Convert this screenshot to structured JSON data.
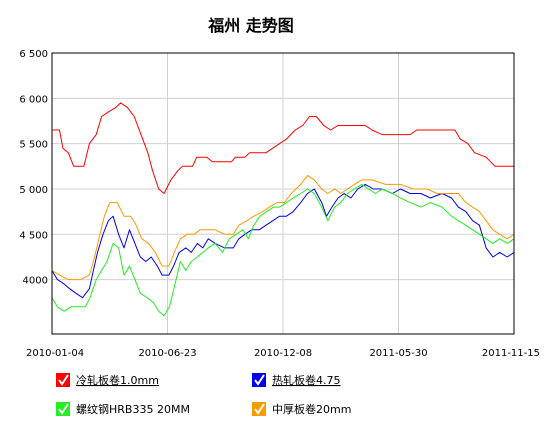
{
  "chart_data": {
    "type": "line",
    "title": "福州 走势图",
    "xlabel": "",
    "ylabel": "",
    "ylim": [
      3400,
      6500
    ],
    "yticks": [
      4000,
      4500,
      5000,
      5500,
      6000,
      6500
    ],
    "ytick_labels": [
      "4000",
      "4 500",
      "5 000",
      "5 500",
      "6 000",
      "6 500"
    ],
    "x_range": [
      "2010-01-04",
      "2011-11-15"
    ],
    "xtick_labels": [
      "2010-01-04",
      "2010-06-23",
      "2010-12-08",
      "2011-05-30",
      "2011-11-15"
    ],
    "grid": true,
    "legend_position": "bottom",
    "series": [
      {
        "name": "冷轧板卷1.0mm",
        "color": "#ff0000",
        "link": true,
        "points": [
          [
            "2010-01-04",
            5650
          ],
          [
            "2010-01-15",
            5650
          ],
          [
            "2010-01-20",
            5450
          ],
          [
            "2010-01-28",
            5400
          ],
          [
            "2010-02-05",
            5250
          ],
          [
            "2010-02-20",
            5250
          ],
          [
            "2010-02-28",
            5500
          ],
          [
            "2010-03-10",
            5600
          ],
          [
            "2010-03-18",
            5800
          ],
          [
            "2010-03-28",
            5850
          ],
          [
            "2010-04-08",
            5900
          ],
          [
            "2010-04-15",
            5950
          ],
          [
            "2010-04-25",
            5900
          ],
          [
            "2010-05-05",
            5800
          ],
          [
            "2010-05-15",
            5600
          ],
          [
            "2010-05-25",
            5400
          ],
          [
            "2010-06-01",
            5200
          ],
          [
            "2010-06-10",
            5000
          ],
          [
            "2010-06-18",
            4950
          ],
          [
            "2010-06-28",
            5100
          ],
          [
            "2010-07-08",
            5200
          ],
          [
            "2010-07-15",
            5250
          ],
          [
            "2010-07-30",
            5250
          ],
          [
            "2010-08-05",
            5350
          ],
          [
            "2010-08-20",
            5350
          ],
          [
            "2010-08-28",
            5300
          ],
          [
            "2010-09-25",
            5300
          ],
          [
            "2010-10-01",
            5350
          ],
          [
            "2010-10-15",
            5350
          ],
          [
            "2010-10-22",
            5400
          ],
          [
            "2010-11-15",
            5400
          ],
          [
            "2010-11-25",
            5450
          ],
          [
            "2010-12-05",
            5500
          ],
          [
            "2010-12-15",
            5550
          ],
          [
            "2010-12-28",
            5650
          ],
          [
            "2011-01-08",
            5700
          ],
          [
            "2011-01-18",
            5800
          ],
          [
            "2011-01-28",
            5800
          ],
          [
            "2011-02-08",
            5700
          ],
          [
            "2011-02-18",
            5650
          ],
          [
            "2011-03-01",
            5700
          ],
          [
            "2011-03-10",
            5700
          ],
          [
            "2011-04-10",
            5700
          ],
          [
            "2011-04-20",
            5650
          ],
          [
            "2011-05-05",
            5600
          ],
          [
            "2011-06-15",
            5600
          ],
          [
            "2011-06-25",
            5650
          ],
          [
            "2011-08-20",
            5650
          ],
          [
            "2011-08-28",
            5550
          ],
          [
            "2011-09-08",
            5500
          ],
          [
            "2011-09-18",
            5400
          ],
          [
            "2011-10-05",
            5350
          ],
          [
            "2011-10-18",
            5250
          ],
          [
            "2011-11-15",
            5250
          ]
        ]
      },
      {
        "name": "热轧板卷4.75",
        "color": "#0000ee",
        "link": true,
        "points": [
          [
            "2010-01-04",
            4100
          ],
          [
            "2010-01-12",
            4000
          ],
          [
            "2010-01-22",
            3950
          ],
          [
            "2010-01-30",
            3900
          ],
          [
            "2010-02-08",
            3850
          ],
          [
            "2010-02-18",
            3800
          ],
          [
            "2010-02-28",
            3900
          ],
          [
            "2010-03-06",
            4100
          ],
          [
            "2010-03-12",
            4300
          ],
          [
            "2010-03-20",
            4500
          ],
          [
            "2010-03-28",
            4650
          ],
          [
            "2010-04-04",
            4700
          ],
          [
            "2010-04-12",
            4500
          ],
          [
            "2010-04-20",
            4350
          ],
          [
            "2010-04-28",
            4550
          ],
          [
            "2010-05-06",
            4400
          ],
          [
            "2010-05-14",
            4250
          ],
          [
            "2010-05-22",
            4200
          ],
          [
            "2010-05-30",
            4250
          ],
          [
            "2010-06-08",
            4150
          ],
          [
            "2010-06-15",
            4050
          ],
          [
            "2010-06-25",
            4050
          ],
          [
            "2010-07-02",
            4150
          ],
          [
            "2010-07-10",
            4300
          ],
          [
            "2010-07-20",
            4350
          ],
          [
            "2010-07-28",
            4300
          ],
          [
            "2010-08-06",
            4400
          ],
          [
            "2010-08-14",
            4350
          ],
          [
            "2010-08-22",
            4450
          ],
          [
            "2010-09-01",
            4400
          ],
          [
            "2010-09-15",
            4350
          ],
          [
            "2010-09-28",
            4350
          ],
          [
            "2010-10-06",
            4450
          ],
          [
            "2010-10-15",
            4500
          ],
          [
            "2010-10-25",
            4550
          ],
          [
            "2010-11-05",
            4550
          ],
          [
            "2010-11-15",
            4600
          ],
          [
            "2010-11-25",
            4650
          ],
          [
            "2010-12-05",
            4700
          ],
          [
            "2010-12-15",
            4700
          ],
          [
            "2010-12-25",
            4750
          ],
          [
            "2011-01-05",
            4850
          ],
          [
            "2011-01-15",
            4950
          ],
          [
            "2011-01-25",
            5000
          ],
          [
            "2011-02-05",
            4850
          ],
          [
            "2011-02-12",
            4700
          ],
          [
            "2011-02-20",
            4800
          ],
          [
            "2011-03-01",
            4900
          ],
          [
            "2011-03-10",
            4950
          ],
          [
            "2011-03-20",
            4900
          ],
          [
            "2011-03-30",
            5000
          ],
          [
            "2011-04-10",
            5050
          ],
          [
            "2011-04-22",
            5000
          ],
          [
            "2011-05-05",
            5000
          ],
          [
            "2011-05-20",
            4950
          ],
          [
            "2011-06-01",
            5000
          ],
          [
            "2011-06-15",
            4950
          ],
          [
            "2011-07-01",
            4950
          ],
          [
            "2011-07-15",
            4900
          ],
          [
            "2011-08-01",
            4950
          ],
          [
            "2011-08-15",
            4900
          ],
          [
            "2011-08-25",
            4800
          ],
          [
            "2011-09-05",
            4750
          ],
          [
            "2011-09-15",
            4650
          ],
          [
            "2011-09-25",
            4600
          ],
          [
            "2011-10-05",
            4350
          ],
          [
            "2011-10-15",
            4250
          ],
          [
            "2011-10-25",
            4300
          ],
          [
            "2011-11-05",
            4250
          ],
          [
            "2011-11-15",
            4300
          ]
        ]
      },
      {
        "name": "螺纹钢HRB335 20MM",
        "color": "#22ee22",
        "link": false,
        "points": [
          [
            "2010-01-04",
            3800
          ],
          [
            "2010-01-12",
            3700
          ],
          [
            "2010-01-22",
            3650
          ],
          [
            "2010-02-01",
            3700
          ],
          [
            "2010-02-12",
            3700
          ],
          [
            "2010-02-22",
            3700
          ],
          [
            "2010-03-01",
            3800
          ],
          [
            "2010-03-10",
            4000
          ],
          [
            "2010-03-18",
            4100
          ],
          [
            "2010-03-26",
            4200
          ],
          [
            "2010-04-04",
            4400
          ],
          [
            "2010-04-12",
            4350
          ],
          [
            "2010-04-20",
            4050
          ],
          [
            "2010-04-28",
            4150
          ],
          [
            "2010-05-06",
            4000
          ],
          [
            "2010-05-14",
            3850
          ],
          [
            "2010-05-24",
            3800
          ],
          [
            "2010-06-02",
            3750
          ],
          [
            "2010-06-10",
            3650
          ],
          [
            "2010-06-18",
            3600
          ],
          [
            "2010-06-26",
            3700
          ],
          [
            "2010-07-04",
            3950
          ],
          [
            "2010-07-12",
            4200
          ],
          [
            "2010-07-20",
            4100
          ],
          [
            "2010-07-28",
            4200
          ],
          [
            "2010-08-06",
            4250
          ],
          [
            "2010-08-14",
            4300
          ],
          [
            "2010-08-22",
            4350
          ],
          [
            "2010-09-01",
            4400
          ],
          [
            "2010-09-12",
            4300
          ],
          [
            "2010-09-22",
            4450
          ],
          [
            "2010-10-02",
            4500
          ],
          [
            "2010-10-12",
            4550
          ],
          [
            "2010-10-20",
            4450
          ],
          [
            "2010-10-28",
            4600
          ],
          [
            "2010-11-06",
            4700
          ],
          [
            "2010-11-16",
            4750
          ],
          [
            "2010-11-26",
            4800
          ],
          [
            "2010-12-05",
            4800
          ],
          [
            "2010-12-15",
            4850
          ],
          [
            "2010-12-25",
            4900
          ],
          [
            "2011-01-05",
            4950
          ],
          [
            "2011-01-15",
            5000
          ],
          [
            "2011-01-25",
            4950
          ],
          [
            "2011-02-05",
            4800
          ],
          [
            "2011-02-14",
            4650
          ],
          [
            "2011-02-24",
            4800
          ],
          [
            "2011-03-05",
            4850
          ],
          [
            "2011-03-15",
            4950
          ],
          [
            "2011-03-25",
            5000
          ],
          [
            "2011-04-05",
            5050
          ],
          [
            "2011-04-15",
            5000
          ],
          [
            "2011-04-25",
            4950
          ],
          [
            "2011-05-05",
            5000
          ],
          [
            "2011-05-20",
            4950
          ],
          [
            "2011-06-01",
            4900
          ],
          [
            "2011-06-15",
            4850
          ],
          [
            "2011-07-01",
            4800
          ],
          [
            "2011-07-15",
            4850
          ],
          [
            "2011-08-01",
            4800
          ],
          [
            "2011-08-15",
            4700
          ],
          [
            "2011-08-25",
            4650
          ],
          [
            "2011-09-05",
            4600
          ],
          [
            "2011-09-15",
            4550
          ],
          [
            "2011-09-25",
            4500
          ],
          [
            "2011-10-05",
            4450
          ],
          [
            "2011-10-15",
            4400
          ],
          [
            "2011-10-25",
            4450
          ],
          [
            "2011-11-05",
            4400
          ],
          [
            "2011-11-15",
            4450
          ]
        ]
      },
      {
        "name": "中厚板卷20mm",
        "color": "#ff9900",
        "link": false,
        "points": [
          [
            "2010-01-04",
            4100
          ],
          [
            "2010-01-15",
            4050
          ],
          [
            "2010-01-28",
            4000
          ],
          [
            "2010-02-15",
            4000
          ],
          [
            "2010-02-28",
            4050
          ],
          [
            "2010-03-06",
            4200
          ],
          [
            "2010-03-14",
            4450
          ],
          [
            "2010-03-22",
            4700
          ],
          [
            "2010-03-30",
            4850
          ],
          [
            "2010-04-10",
            4850
          ],
          [
            "2010-04-20",
            4700
          ],
          [
            "2010-04-30",
            4700
          ],
          [
            "2010-05-08",
            4600
          ],
          [
            "2010-05-16",
            4450
          ],
          [
            "2010-05-26",
            4400
          ],
          [
            "2010-06-05",
            4300
          ],
          [
            "2010-06-15",
            4150
          ],
          [
            "2010-06-25",
            4150
          ],
          [
            "2010-07-03",
            4300
          ],
          [
            "2010-07-12",
            4450
          ],
          [
            "2010-07-22",
            4500
          ],
          [
            "2010-08-01",
            4500
          ],
          [
            "2010-08-10",
            4550
          ],
          [
            "2010-08-20",
            4550
          ],
          [
            "2010-09-01",
            4550
          ],
          [
            "2010-09-15",
            4500
          ],
          [
            "2010-09-28",
            4500
          ],
          [
            "2010-10-06",
            4600
          ],
          [
            "2010-10-18",
            4650
          ],
          [
            "2010-10-28",
            4700
          ],
          [
            "2010-11-10",
            4750
          ],
          [
            "2010-11-20",
            4800
          ],
          [
            "2010-12-01",
            4850
          ],
          [
            "2010-12-12",
            4850
          ],
          [
            "2010-12-22",
            4950
          ],
          [
            "2011-01-05",
            5050
          ],
          [
            "2011-01-15",
            5150
          ],
          [
            "2011-01-25",
            5100
          ],
          [
            "2011-02-05",
            5000
          ],
          [
            "2011-02-14",
            4950
          ],
          [
            "2011-02-24",
            5000
          ],
          [
            "2011-03-05",
            4950
          ],
          [
            "2011-03-15",
            5000
          ],
          [
            "2011-03-25",
            5050
          ],
          [
            "2011-04-05",
            5100
          ],
          [
            "2011-04-20",
            5100
          ],
          [
            "2011-05-10",
            5050
          ],
          [
            "2011-06-01",
            5050
          ],
          [
            "2011-06-20",
            5000
          ],
          [
            "2011-07-10",
            5000
          ],
          [
            "2011-07-25",
            4950
          ],
          [
            "2011-08-10",
            4950
          ],
          [
            "2011-08-25",
            4950
          ],
          [
            "2011-09-05",
            4850
          ],
          [
            "2011-09-15",
            4800
          ],
          [
            "2011-09-25",
            4750
          ],
          [
            "2011-10-05",
            4650
          ],
          [
            "2011-10-15",
            4550
          ],
          [
            "2011-10-25",
            4500
          ],
          [
            "2011-11-05",
            4450
          ],
          [
            "2011-11-15",
            4500
          ]
        ]
      }
    ]
  }
}
